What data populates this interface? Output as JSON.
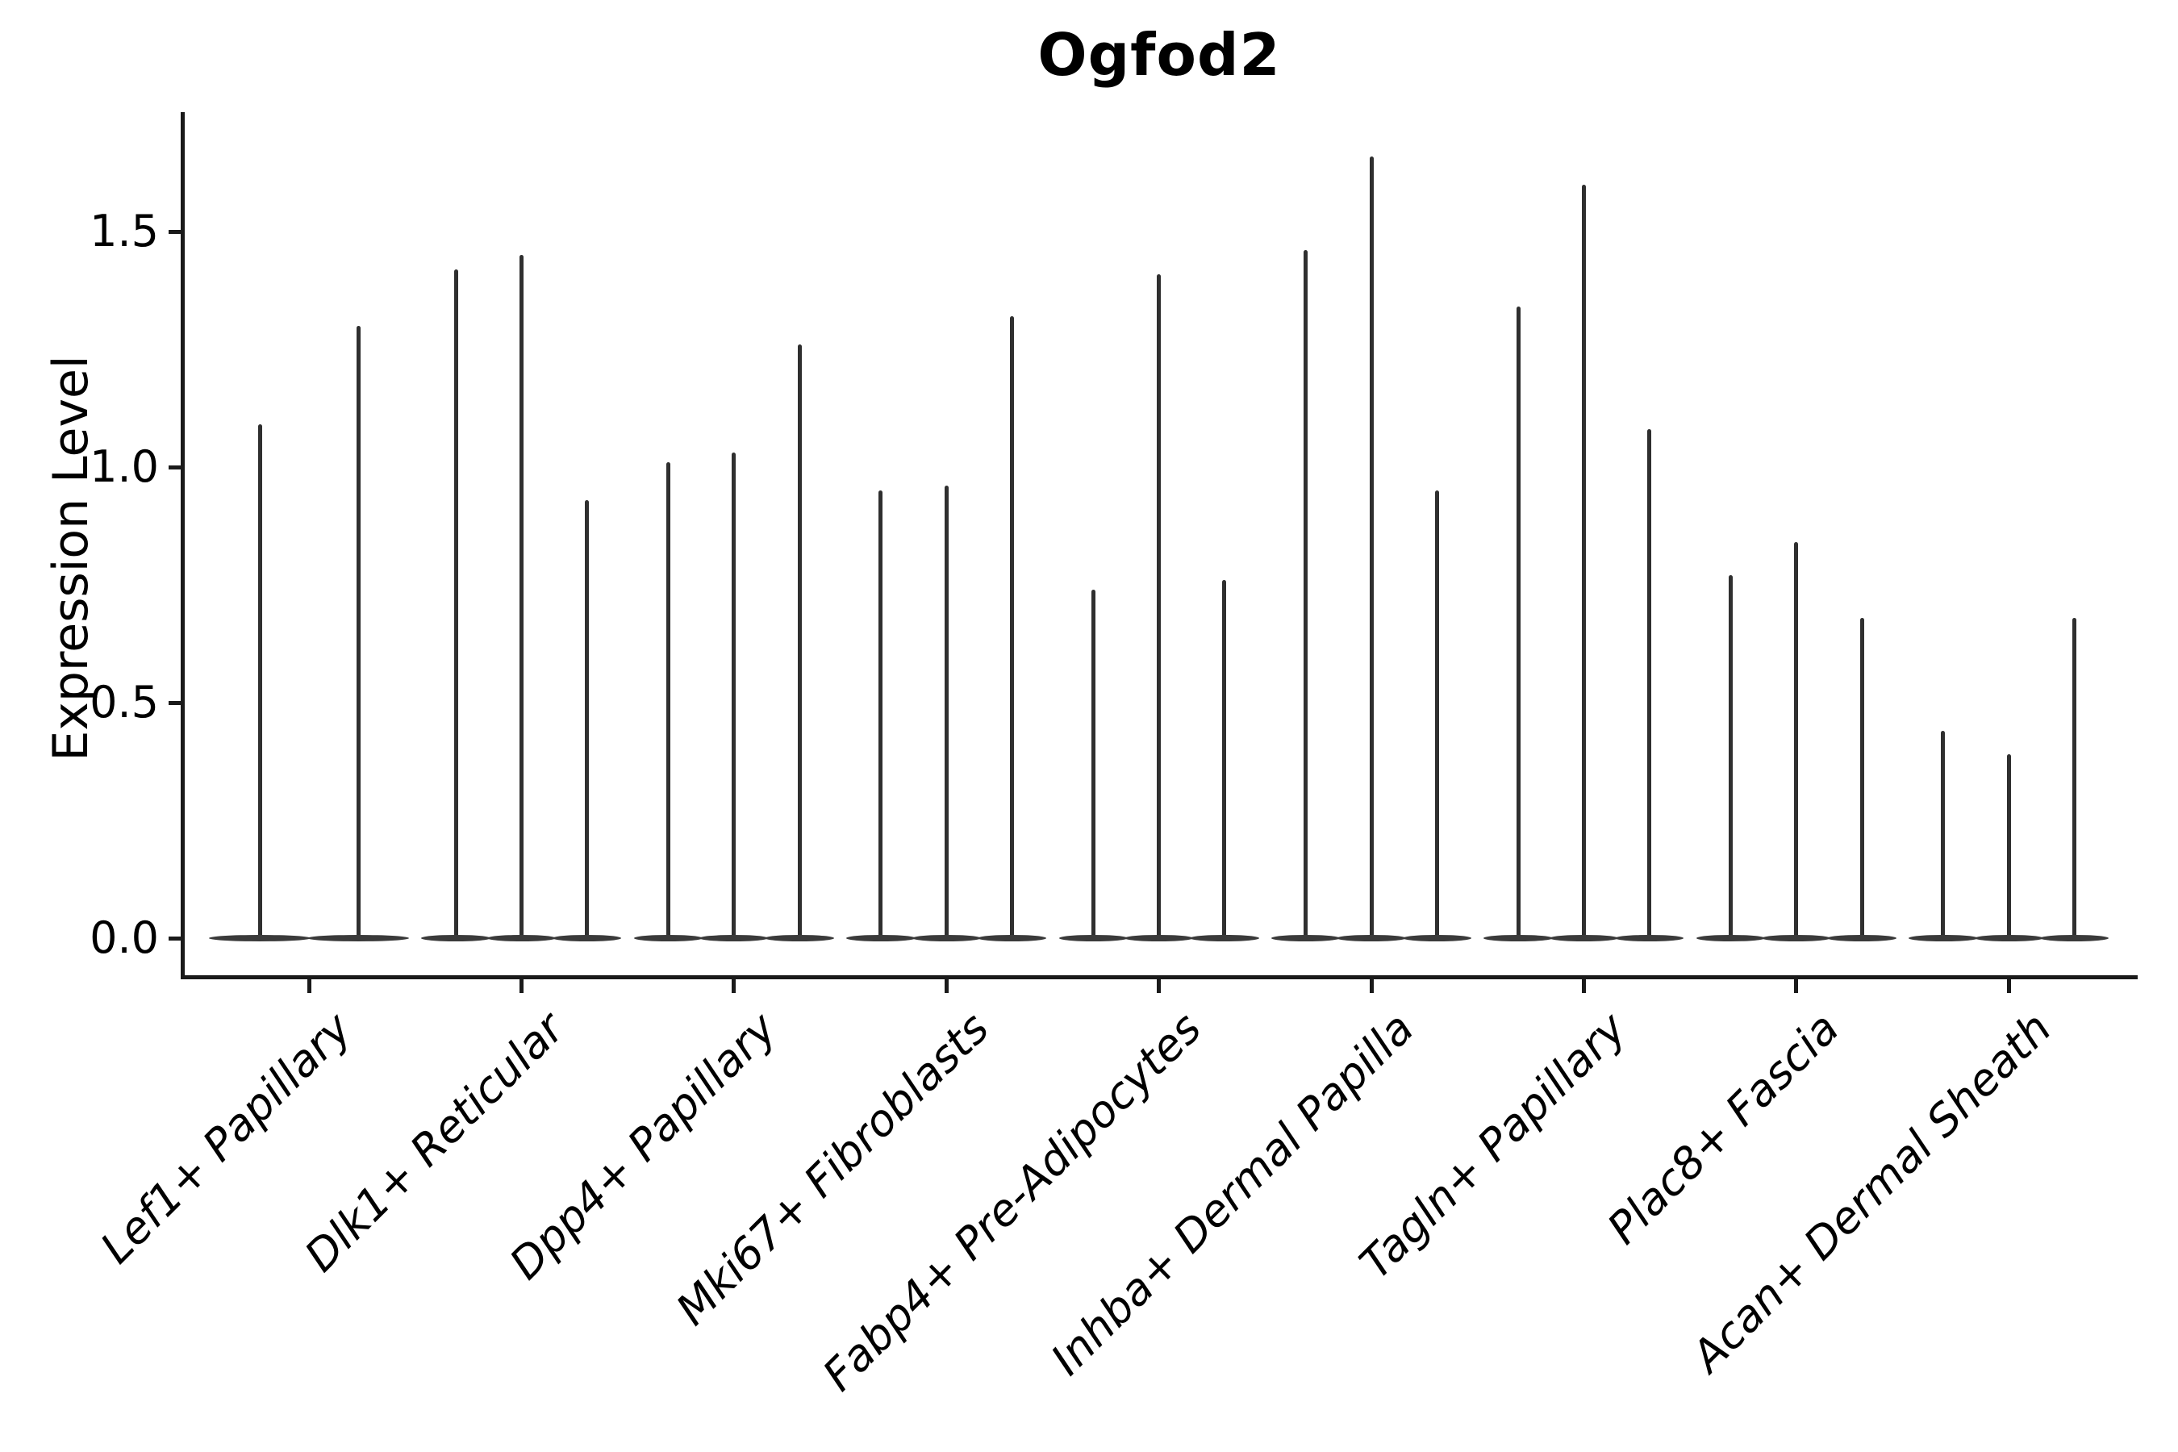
{
  "figure": {
    "title": "Ogfod2"
  },
  "chart_data": {
    "type": "violin",
    "title": "Ogfod2",
    "xlabel": "",
    "ylabel": "Expression Level",
    "legend": "none",
    "grid": false,
    "spines": [
      "left",
      "bottom"
    ],
    "ylim": [
      -0.08,
      1.76
    ],
    "yticks": [
      {
        "label": "0.0",
        "value": 0.0
      },
      {
        "label": "0.5",
        "value": 0.5
      },
      {
        "label": "1.0",
        "value": 1.0
      },
      {
        "label": "1.5",
        "value": 1.5
      }
    ],
    "categories": [
      "Lef1+ Papillary",
      "Dlk1+ Reticular",
      "Dpp4+ Papillary",
      "Mki67+ Fibroblasts",
      "Fabp4+ Pre-Adipocytes",
      "Inhba+ Dermal Papilla",
      "Tagln+ Papillary",
      "Plac8+ Fascia",
      "Acan+ Dermal Sheath"
    ],
    "groups": [
      {
        "category": "Lef1+ Papillary",
        "violin_max_expression": [
          1.09,
          1.3
        ]
      },
      {
        "category": "Dlk1+ Reticular",
        "violin_max_expression": [
          1.42,
          1.45,
          0.93
        ]
      },
      {
        "category": "Dpp4+ Papillary",
        "violin_max_expression": [
          1.01,
          1.03,
          1.26
        ]
      },
      {
        "category": "Mki67+ Fibroblasts",
        "violin_max_expression": [
          0.95,
          0.96,
          1.32
        ]
      },
      {
        "category": "Fabp4+ Pre-Adipocytes",
        "violin_max_expression": [
          0.74,
          1.41,
          0.76
        ]
      },
      {
        "category": "Inhba+ Dermal Papilla",
        "violin_max_expression": [
          1.46,
          1.66,
          0.95
        ]
      },
      {
        "category": "Tagln+ Papillary",
        "violin_max_expression": [
          1.34,
          1.6,
          1.08
        ]
      },
      {
        "category": "Plac8+ Fascia",
        "violin_max_expression": [
          0.77,
          0.84,
          0.68
        ]
      },
      {
        "category": "Acan+ Dermal Sheath",
        "violin_max_expression": [
          0.44,
          0.39,
          0.68
        ]
      }
    ],
    "violin_baseline_value": 0.0,
    "colors": {
      "spike": "#2f2f2f",
      "violin_base": "#3a3a3a",
      "axis": "#1a1a1a",
      "background": "#ffffff"
    }
  }
}
